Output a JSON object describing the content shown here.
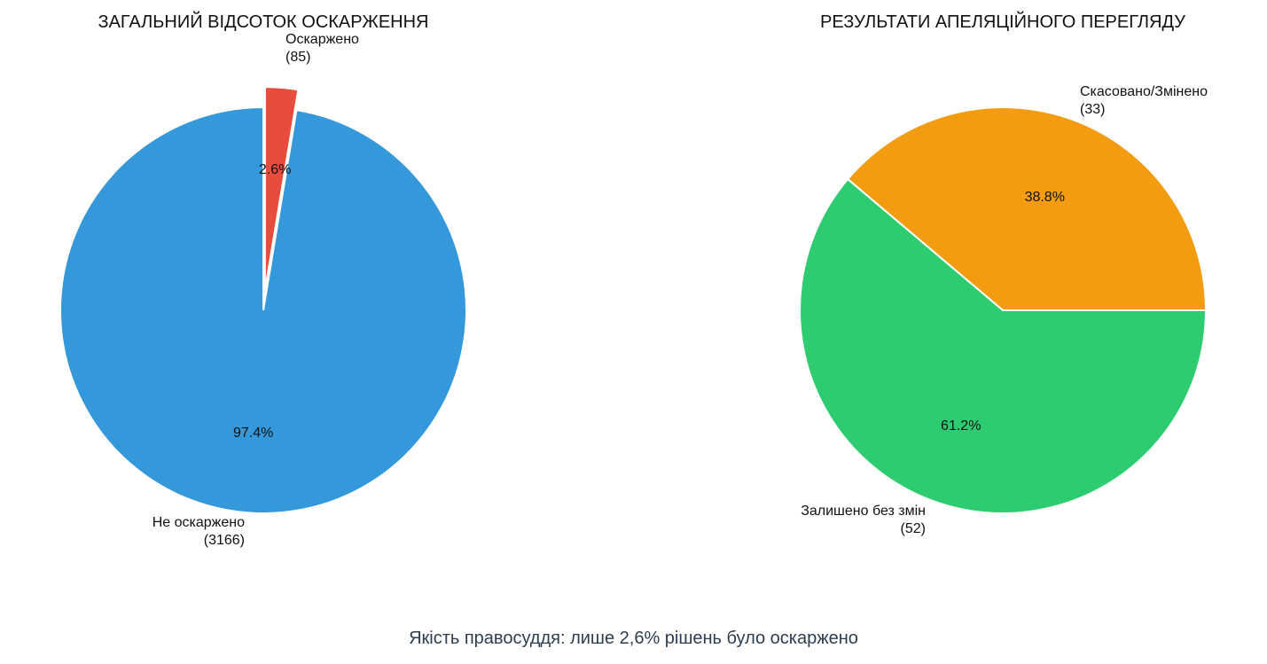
{
  "chart_data": [
    {
      "type": "pie",
      "title": "ЗАГАЛЬНИЙ ВІДСОТОК ОСКАРЖЕННЯ",
      "slices": [
        {
          "label": "Не оскаржено",
          "count_label": "(3166)",
          "value": 3166,
          "percent_label": "97.4%",
          "color": "#3498db",
          "exploded": false
        },
        {
          "label": "Оскаржено",
          "count_label": "(85)",
          "value": 85,
          "percent_label": "2.6%",
          "color": "#e74c3c",
          "exploded": true
        }
      ]
    },
    {
      "type": "pie",
      "title": "РЕЗУЛЬТАТИ АПЕЛЯЦІЙНОГО ПЕРЕГЛЯДУ",
      "slices": [
        {
          "label": "Скасовано/Змінено",
          "count_label": "(33)",
          "value": 33,
          "percent_label": "38.8%",
          "color": "#f39c12",
          "exploded": false
        },
        {
          "label": "Залишено без змін",
          "count_label": "(52)",
          "value": 52,
          "percent_label": "61.2%",
          "color": "#2ecc71",
          "exploded": false
        }
      ]
    }
  ],
  "caption": "Якість правосуддя: лише 2,6% рішень було оскаржено"
}
